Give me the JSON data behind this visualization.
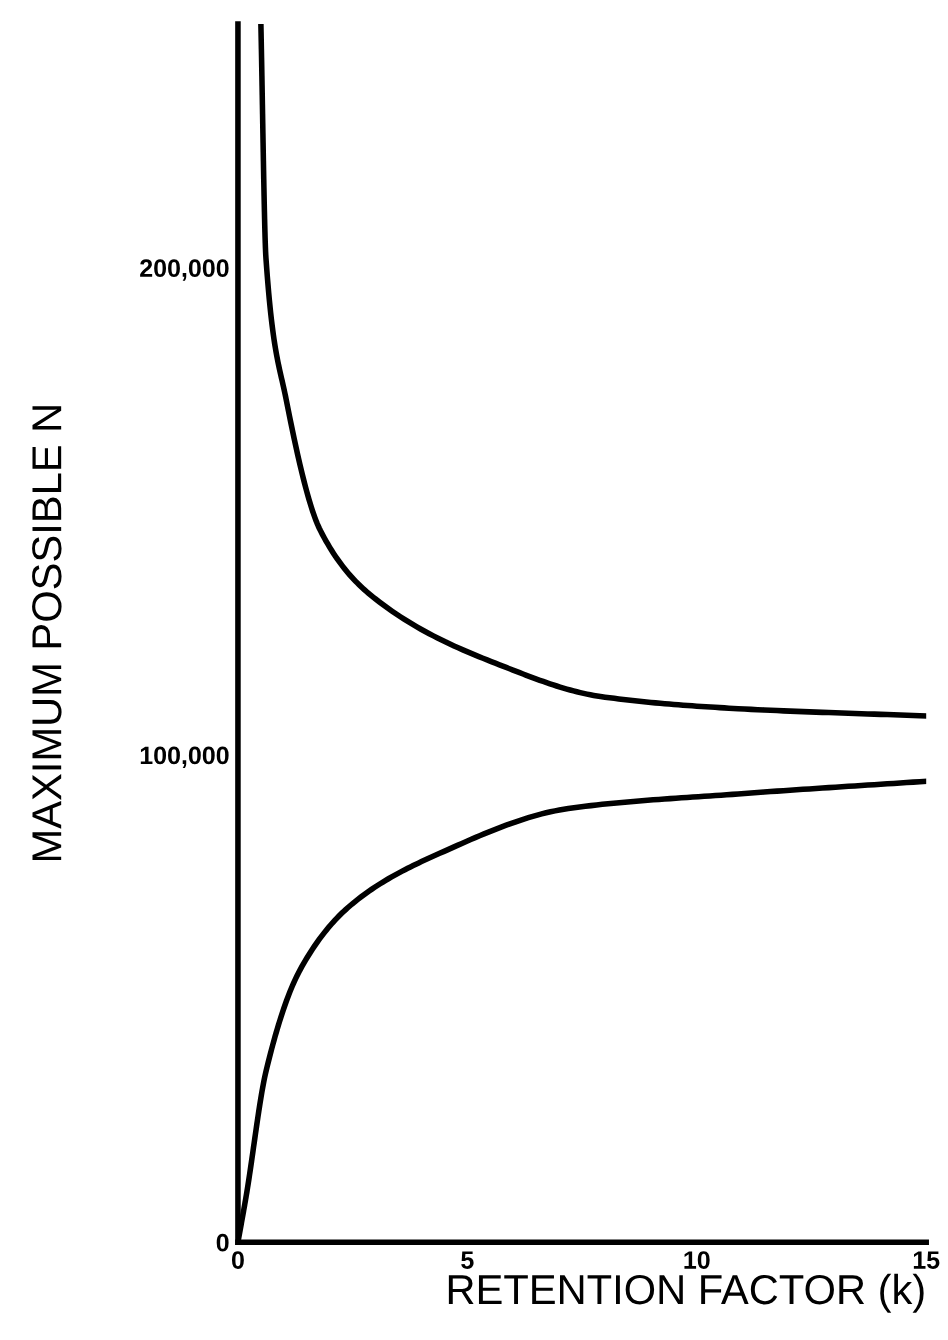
{
  "chart_data": {
    "type": "line",
    "xlabel": "RETENTION FACTOR (k)",
    "ylabel": "MAXIMUM POSSIBLE N",
    "xlim": [
      0,
      15
    ],
    "ylim": [
      0,
      250000
    ],
    "xticks": [
      0,
      5,
      10,
      15
    ],
    "yticks": [
      0,
      {
        "value": 100000,
        "label": "100,000"
      },
      {
        "value": 200000,
        "label": "200,000"
      }
    ],
    "grid": false,
    "legend": false,
    "series": [
      {
        "color": "#000000",
        "x": [
          0.5,
          0.61,
          1.05,
          1.8,
          3.0,
          5.7,
          7.9,
          10.9,
          15
        ],
        "values": [
          250000,
          202000,
          173000,
          146000,
          132000,
          118500,
          112000,
          109500,
          108000
        ]
      },
      {
        "color": "#000000",
        "x": [
          0,
          0.18,
          0.61,
          1.36,
          2.5,
          4.3,
          7.2,
          10.9,
          15
        ],
        "values": [
          0,
          9500,
          35000,
          56000,
          69500,
          79400,
          89000,
          92000,
          94600
        ]
      }
    ]
  }
}
